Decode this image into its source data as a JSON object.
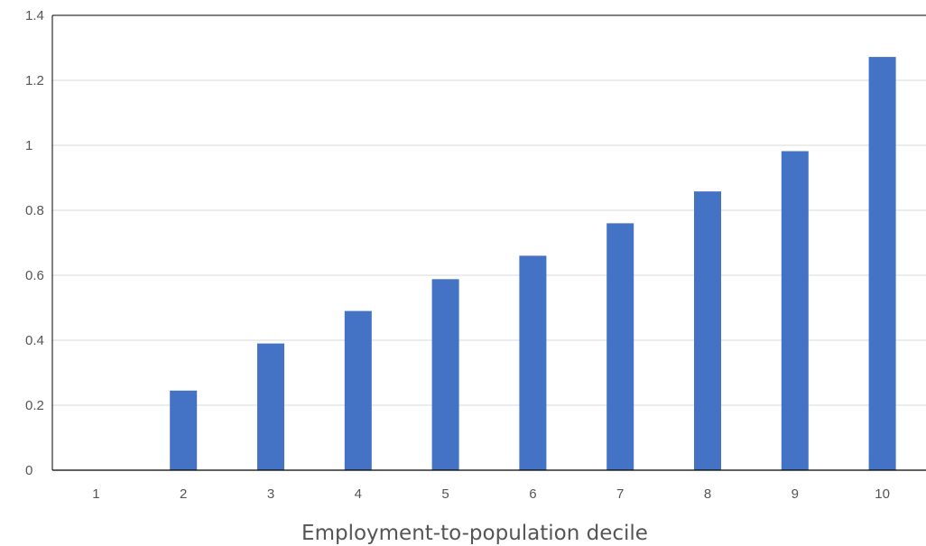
{
  "chart_data": {
    "type": "bar",
    "title": "",
    "xlabel": "Employment-to-population decile",
    "ylabel": "",
    "categories": [
      "1",
      "2",
      "3",
      "4",
      "5",
      "6",
      "7",
      "8",
      "9",
      "10"
    ],
    "values": [
      0,
      0.245,
      0.39,
      0.49,
      0.588,
      0.66,
      0.76,
      0.858,
      0.982,
      1.272
    ],
    "ylim": [
      0,
      1.4
    ],
    "yticks": [
      0,
      0.2,
      0.4,
      0.6,
      0.8,
      1,
      1.2,
      1.4
    ],
    "ytick_labels": [
      "0",
      "0.2",
      "0.4",
      "0.6",
      "0.8",
      "1",
      "1.2",
      "1.4"
    ],
    "grid": true,
    "legend": "none",
    "bar_color": "#4472C4",
    "grid_color": "#D9D9D9",
    "axis_color": "#000000"
  }
}
